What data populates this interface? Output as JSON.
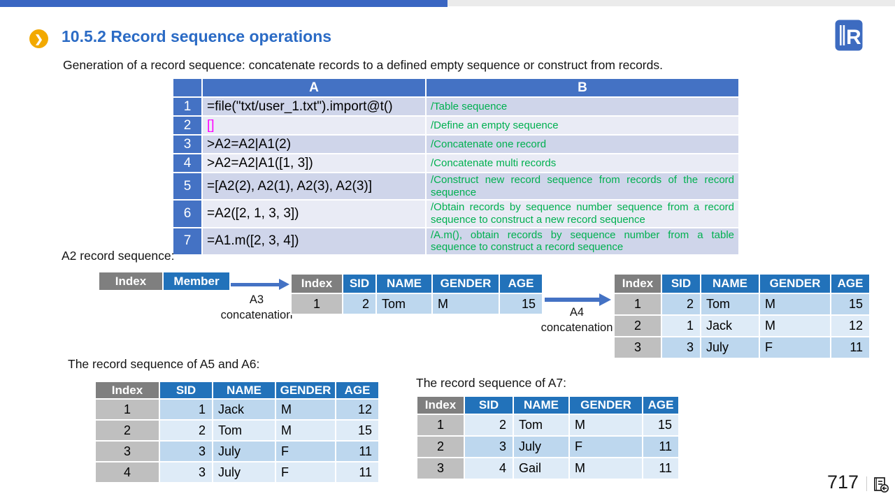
{
  "header": {
    "title": "10.5.2 Record sequence operations"
  },
  "intro": "Generation of a record sequence: concatenate records to a defined empty sequence or construct from records.",
  "code_table": {
    "col_num": "",
    "col_a": "A",
    "col_b": "B",
    "rows": [
      {
        "num": "1",
        "code": "=file(\"txt/user_1.txt\").import@t()",
        "comment": "/Table sequence"
      },
      {
        "num": "2",
        "code": "[]",
        "code_color": "#FF00FF",
        "comment": "/Define an empty sequence"
      },
      {
        "num": "3",
        "code": ">A2=A2|A1(2)",
        "comment": "/Concatenate one record"
      },
      {
        "num": "4",
        "code": ">A2=A2|A1([1, 3])",
        "comment": "/Concatenate multi records"
      },
      {
        "num": "5",
        "code": "=[A2(2), A2(1), A2(3), A2(3)]",
        "comment": "/Construct new record sequence from records of the record sequence"
      },
      {
        "num": "6",
        "code": "=A2([2, 1, 3, 3])",
        "comment": "/Obtain records by sequence number sequence from a record sequence to construct a new record sequence"
      },
      {
        "num": "7",
        "code": "=A1.m([2, 3, 4])",
        "comment": "/A.m(), obtain records by sequence number from a table sequence to construct a record sequence"
      }
    ]
  },
  "labels": {
    "a2": "A2 record sequence:",
    "a5a6": "The record sequence of A5 and A6:",
    "a7": "The record sequence of A7:",
    "a3": "A3",
    "a4": "A4",
    "concatenation": "concatenation"
  },
  "seq_table": {
    "index": "Index",
    "member": "Member"
  },
  "tables": {
    "a3_result": {
      "headers": [
        "Index",
        "SID",
        "NAME",
        "GENDER",
        "AGE"
      ],
      "first_shade": "dark",
      "rows": [
        [
          "1",
          "2",
          "Tom",
          "M",
          "15"
        ]
      ]
    },
    "a4_result": {
      "headers": [
        "Index",
        "SID",
        "NAME",
        "GENDER",
        "AGE"
      ],
      "first_shade": "dark",
      "rows": [
        [
          "1",
          "2",
          "Tom",
          "M",
          "15"
        ],
        [
          "2",
          "1",
          "Jack",
          "M",
          "12"
        ],
        [
          "3",
          "3",
          "July",
          "F",
          "11"
        ]
      ]
    },
    "a5a6_result": {
      "headers": [
        "Index",
        "SID",
        "NAME",
        "GENDER",
        "AGE"
      ],
      "first_shade": "dark",
      "rows": [
        [
          "1",
          "1",
          "Jack",
          "M",
          "12"
        ],
        [
          "2",
          "2",
          "Tom",
          "M",
          "15"
        ],
        [
          "3",
          "3",
          "July",
          "F",
          "11"
        ],
        [
          "4",
          "3",
          "July",
          "F",
          "11"
        ]
      ]
    },
    "a7_result": {
      "headers": [
        "Index",
        "SID",
        "NAME",
        "GENDER",
        "AGE"
      ],
      "first_shade": "light",
      "rows": [
        [
          "1",
          "2",
          "Tom",
          "M",
          "15"
        ],
        [
          "2",
          "3",
          "July",
          "F",
          "11"
        ],
        [
          "3",
          "4",
          "Gail",
          "M",
          "11"
        ]
      ]
    }
  },
  "footer": {
    "page": "717"
  },
  "icons": {
    "bullet": "❯",
    "logo": "raqsoft-logo",
    "footer": "return-to-contents"
  },
  "colors": {
    "title_blue": "#2B6BC5",
    "bar_blue": "#3A66C2",
    "bar_gray": "#EBEBEB",
    "table_header_blue": "#4472C4",
    "mini_header_blue": "#2272BA",
    "index_header_gray": "#7F7F7F",
    "index_cell_gray": "#BFBFBF",
    "band_dark": "#CFD5EA",
    "band_light": "#E9EBF5",
    "row_dark": "#BDD7EE",
    "row_light": "#DEEBF7",
    "comment_green": "#00B050",
    "empty_seq_magenta": "#FF00FF",
    "bullet_orange": "#F2A900",
    "arrow_blue": "#4472C4"
  }
}
